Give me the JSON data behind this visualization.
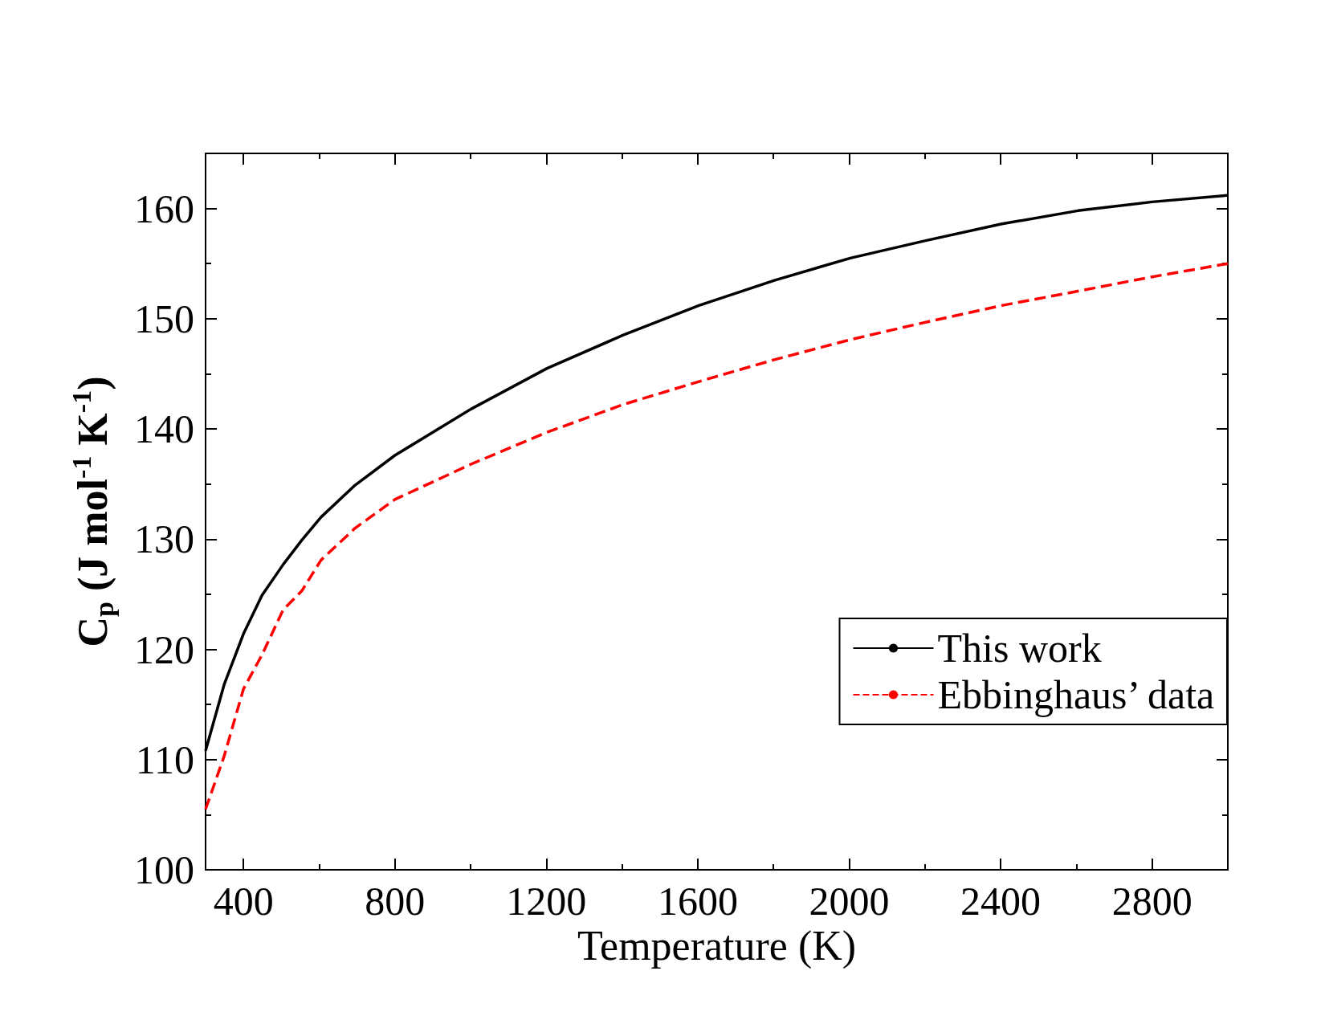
{
  "chart_data": {
    "type": "line",
    "xlabel": "Temperature (K)",
    "ylabel": "C$_{p}$ (J mol$^{-1}$ K$^{-1}$)",
    "xlim": [
      300,
      3000
    ],
    "xticks": [
      400,
      800,
      1200,
      1600,
      2000,
      2400,
      2800
    ],
    "ylim": [
      100,
      165
    ],
    "yticks": [
      100,
      110,
      120,
      130,
      140,
      150,
      160
    ],
    "grid": false,
    "legend": "bottom right",
    "marker": "none",
    "series": [
      {
        "name": "This work",
        "color": "#000000",
        "line_style": "solid",
        "x": [
          300,
          349,
          400,
          449,
          505,
          554,
          605,
          695,
          800,
          1001,
          1202,
          1402,
          1603,
          1804,
          2003,
          2204,
          2403,
          2604,
          2800,
          3000
        ],
        "values": [
          110.8,
          116.8,
          121.4,
          124.9,
          127.7,
          129.9,
          132.0,
          134.9,
          137.6,
          141.8,
          145.5,
          148.5,
          151.2,
          153.5,
          155.5,
          157.1,
          158.6,
          159.8,
          160.6,
          161.2
        ]
      },
      {
        "name": "Ebbinghaus’ data",
        "color": "#ff0000",
        "line_style": "dashed",
        "x": [
          300,
          349,
          400,
          449,
          505,
          554,
          605,
          695,
          800,
          1001,
          1202,
          1402,
          1603,
          1804,
          2003,
          2204,
          2403,
          2604,
          2800,
          3000
        ],
        "values": [
          105.5,
          110.3,
          116.4,
          119.5,
          123.6,
          125.3,
          128.1,
          131.0,
          133.6,
          136.8,
          139.7,
          142.2,
          144.3,
          146.3,
          148.1,
          149.7,
          151.2,
          152.5,
          153.8,
          155.0
        ]
      }
    ]
  }
}
